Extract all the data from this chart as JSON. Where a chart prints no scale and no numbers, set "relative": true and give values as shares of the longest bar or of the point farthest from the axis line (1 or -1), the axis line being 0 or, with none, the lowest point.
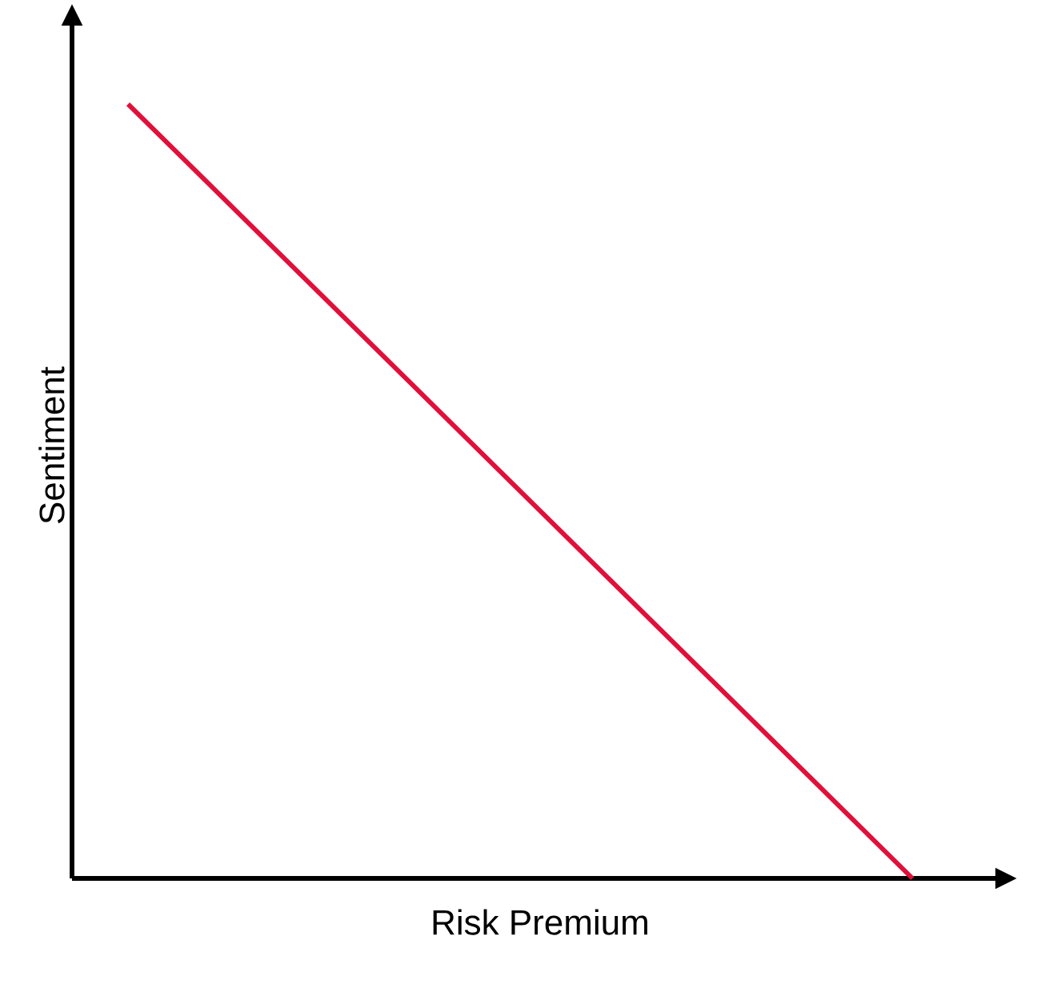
{
  "chart_data": {
    "type": "line",
    "xlabel": "Risk Premium",
    "ylabel": "Sentiment",
    "relative": true,
    "categories": [
      null,
      null
    ],
    "series": [
      {
        "color": "#e0103a",
        "values": [
          1,
          0
        ]
      }
    ]
  }
}
